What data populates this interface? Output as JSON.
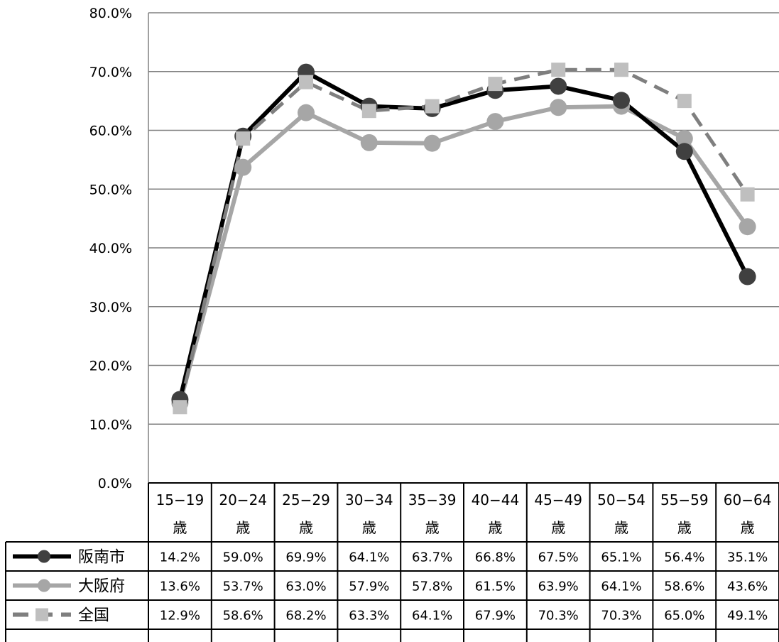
{
  "chart_data": {
    "type": "line",
    "y_tick_labels": [
      "0.0%",
      "10.0%",
      "20.0%",
      "30.0%",
      "40.0%",
      "50.0%",
      "60.0%",
      "70.0%",
      "80.0%"
    ],
    "ylim": [
      0,
      80
    ],
    "grid": true,
    "legend_placement": "table-left",
    "categories": [
      [
        "15−19",
        "歳"
      ],
      [
        "20−24",
        "歳"
      ],
      [
        "25−29",
        "歳"
      ],
      [
        "30−34",
        "歳"
      ],
      [
        "35−39",
        "歳"
      ],
      [
        "40−44",
        "歳"
      ],
      [
        "45−49",
        "歳"
      ],
      [
        "50−54",
        "歳"
      ],
      [
        "55−59",
        "歳"
      ],
      [
        "60−64",
        "歳"
      ]
    ],
    "series": [
      {
        "name": "阪南市",
        "color": "#000000",
        "marker_color": "#404040",
        "dash": false,
        "marker": "circle",
        "values": [
          14.2,
          59.0,
          69.9,
          64.1,
          63.7,
          66.8,
          67.5,
          65.1,
          56.4,
          35.1
        ],
        "labels": [
          "14.2%",
          "59.0%",
          "69.9%",
          "64.1%",
          "63.7%",
          "66.8%",
          "67.5%",
          "65.1%",
          "56.4%",
          "35.1%"
        ]
      },
      {
        "name": "大阪府",
        "color": "#a6a6a6",
        "marker_color": "#a6a6a6",
        "dash": false,
        "marker": "circle",
        "values": [
          13.6,
          53.7,
          63.0,
          57.9,
          57.8,
          61.5,
          63.9,
          64.1,
          58.6,
          43.6
        ],
        "labels": [
          "13.6%",
          "53.7%",
          "63.0%",
          "57.9%",
          "57.8%",
          "61.5%",
          "63.9%",
          "64.1%",
          "58.6%",
          "43.6%"
        ]
      },
      {
        "name": "全国",
        "color": "#7f7f7f",
        "marker_color": "#bfbfbf",
        "dash": true,
        "marker": "square",
        "values": [
          12.9,
          58.6,
          68.2,
          63.3,
          64.1,
          67.9,
          70.3,
          70.3,
          65.0,
          49.1
        ],
        "labels": [
          "12.9%",
          "58.6%",
          "68.2%",
          "63.3%",
          "64.1%",
          "67.9%",
          "70.3%",
          "70.3%",
          "65.0%",
          "49.1%"
        ]
      }
    ]
  }
}
